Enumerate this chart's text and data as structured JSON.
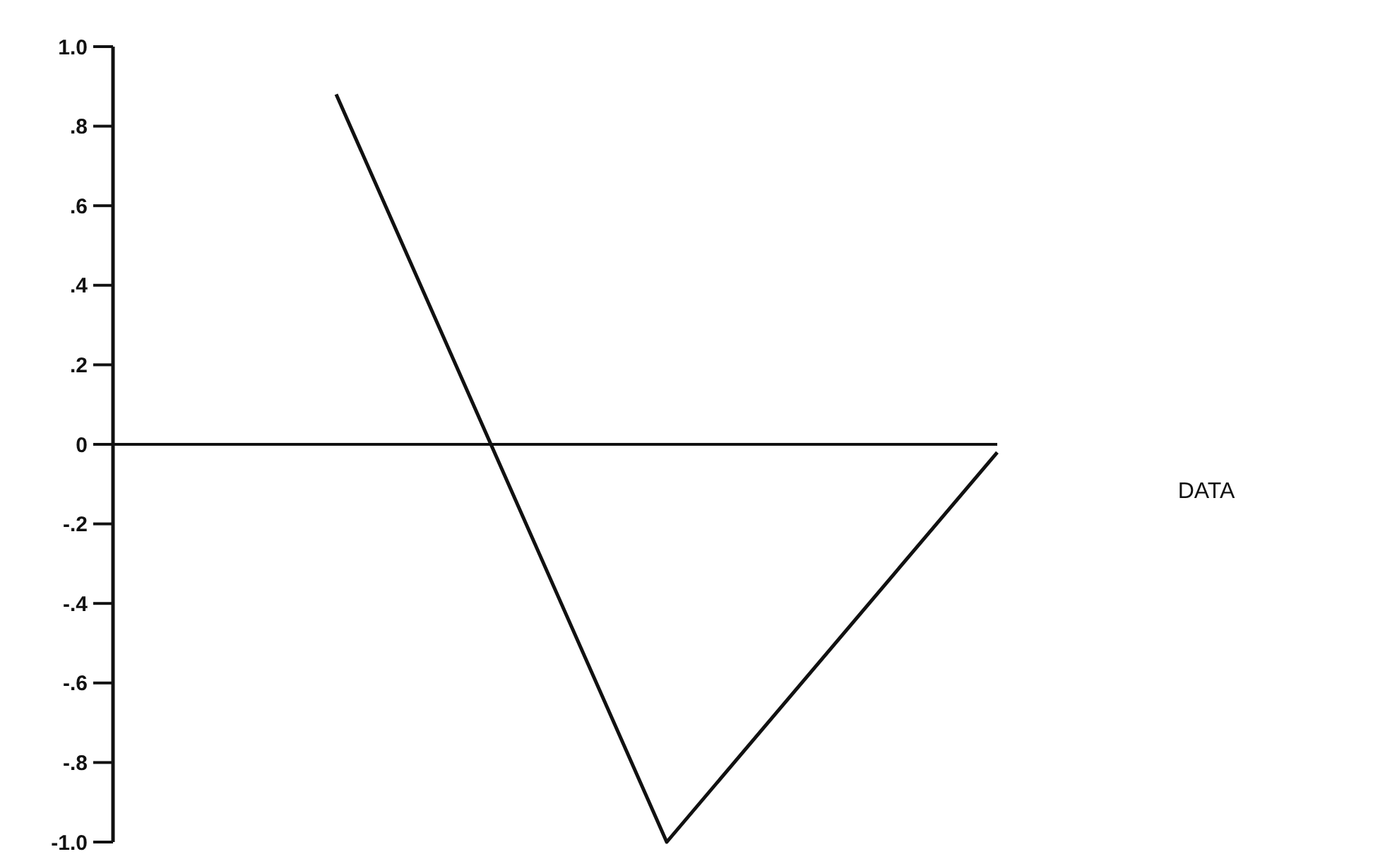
{
  "chart_data": {
    "type": "line",
    "categories": [
      null,
      null,
      null
    ],
    "series": [
      {
        "color": "#111111",
        "values": [
          0.88,
          -1.0,
          -0.02
        ]
      }
    ],
    "ylim": [
      -1,
      1
    ],
    "yticks": [
      {
        "value": 1,
        "label": "1.0"
      },
      {
        "value": 0.8,
        "label": ".8"
      },
      {
        "value": 0.6,
        "label": ".6"
      },
      {
        "value": 0.4,
        "label": ".4"
      },
      {
        "value": 0.2,
        "label": ".2"
      },
      0,
      {
        "value": -0.2,
        "label": "-.2"
      },
      {
        "value": -0.4,
        "label": "-.4"
      },
      {
        "value": -0.6,
        "label": "-.6"
      },
      {
        "value": -0.8,
        "label": "-.8"
      },
      {
        "value": -1,
        "label": "-1.0"
      }
    ],
    "marker": "none",
    "line_style": "solid",
    "annotations": [
      "DATA"
    ]
  }
}
